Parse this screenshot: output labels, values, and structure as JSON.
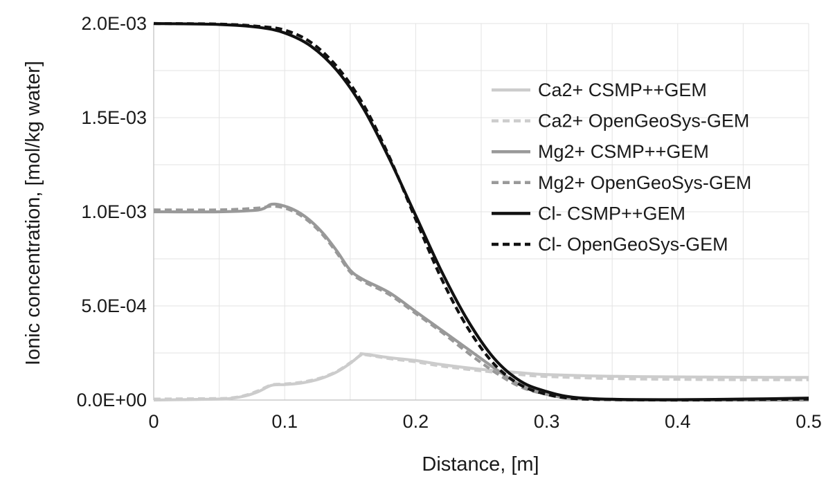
{
  "chart_data": {
    "type": "line",
    "title": "",
    "xlabel": "Distance, [m]",
    "ylabel": "Ionic concentration, [mol/kg water]",
    "xlim": [
      0,
      0.5
    ],
    "ylim": [
      0,
      0.002
    ],
    "x_ticks": [
      0,
      0.1,
      0.2,
      0.3,
      0.4,
      0.5
    ],
    "x_tick_labels": [
      "0",
      "0.1",
      "0.2",
      "0.3",
      "0.4",
      "0.5"
    ],
    "y_ticks": [
      0,
      0.0005,
      0.001,
      0.0015,
      0.002
    ],
    "y_tick_labels": [
      "0.0E+00",
      "5.0E-04",
      "1.0E-03",
      "1.5E-03",
      "2.0E-03"
    ],
    "grid": true,
    "legend_position": "right",
    "series": [
      {
        "name": "Ca2+ CSMP++GEM",
        "color": "#cccccc",
        "dash": "solid",
        "x": [
          0,
          0.05,
          0.06,
          0.07,
          0.08,
          0.09,
          0.1,
          0.11,
          0.12,
          0.13,
          0.14,
          0.15,
          0.158,
          0.16,
          0.18,
          0.2,
          0.22,
          0.25,
          0.28,
          0.3,
          0.35,
          0.4,
          0.45,
          0.5
        ],
        "y": [
          0.0,
          5e-06,
          1e-05,
          2.2e-05,
          4.5e-05,
          7.8e-05,
          8.2e-05,
          8.8e-05,
          0.0001,
          0.00012,
          0.00015,
          0.000195,
          0.00024,
          0.000245,
          0.000225,
          0.00021,
          0.000188,
          0.000163,
          0.000145,
          0.000135,
          0.000126,
          0.000123,
          0.000121,
          0.00012
        ]
      },
      {
        "name": "Ca2+ OpenGeoSys-GEM",
        "color": "#cccccc",
        "dash": "dashed",
        "x": [
          0,
          0.05,
          0.06,
          0.07,
          0.08,
          0.09,
          0.1,
          0.11,
          0.12,
          0.13,
          0.14,
          0.15,
          0.158,
          0.16,
          0.18,
          0.2,
          0.22,
          0.25,
          0.28,
          0.3,
          0.35,
          0.4,
          0.45,
          0.5
        ],
        "y": [
          5e-06,
          8e-06,
          1.2e-05,
          2.5e-05,
          5e-05,
          8e-05,
          8.5e-05,
          9.2e-05,
          0.000104,
          0.000123,
          0.000153,
          0.000198,
          0.000238,
          0.000242,
          0.00022,
          0.000203,
          0.00018,
          0.000155,
          0.000135,
          0.000125,
          0.000114,
          0.00011,
          0.000108,
          0.000108
        ]
      },
      {
        "name": "Mg2+ CSMP++GEM",
        "color": "#999999",
        "dash": "solid",
        "x": [
          0,
          0.05,
          0.08,
          0.09,
          0.1,
          0.11,
          0.12,
          0.13,
          0.14,
          0.15,
          0.16,
          0.18,
          0.2,
          0.22,
          0.24,
          0.26,
          0.28,
          0.3,
          0.32,
          0.35,
          0.4,
          0.5
        ],
        "y": [
          0.001,
          0.001,
          0.00101,
          0.00104,
          0.00103,
          0.001,
          0.00095,
          0.00088,
          0.00079,
          0.00069,
          0.00064,
          0.00057,
          0.00047,
          0.00037,
          0.00027,
          0.00017,
          8e-05,
          3.5e-05,
          1e-05,
          2e-06,
          0.0,
          0.0
        ]
      },
      {
        "name": "Mg2+ OpenGeoSys-GEM",
        "color": "#999999",
        "dash": "dashed",
        "x": [
          0,
          0.05,
          0.08,
          0.09,
          0.1,
          0.11,
          0.12,
          0.13,
          0.14,
          0.15,
          0.16,
          0.18,
          0.2,
          0.22,
          0.24,
          0.26,
          0.28,
          0.3,
          0.32,
          0.35,
          0.4,
          0.5
        ],
        "y": [
          0.00101,
          0.00101,
          0.00102,
          0.00103,
          0.00102,
          0.00099,
          0.00094,
          0.00087,
          0.00078,
          0.00068,
          0.00063,
          0.00056,
          0.00046,
          0.00036,
          0.00025,
          0.00015,
          7e-05,
          3e-05,
          8e-06,
          2e-06,
          0.0,
          0.0
        ]
      },
      {
        "name": "Cl- CSMP++GEM",
        "color": "#111111",
        "dash": "solid",
        "x": [
          0,
          0.05,
          0.08,
          0.1,
          0.12,
          0.14,
          0.16,
          0.18,
          0.2,
          0.22,
          0.24,
          0.26,
          0.28,
          0.3,
          0.32,
          0.35,
          0.4,
          0.45,
          0.5
        ],
        "y": [
          0.002,
          0.001995,
          0.00198,
          0.00195,
          0.00188,
          0.00175,
          0.00155,
          0.00128,
          0.00098,
          0.00068,
          0.00042,
          0.00022,
          0.0001,
          4.5e-05,
          1.5e-05,
          4e-06,
          2e-06,
          5e-06,
          1e-05
        ]
      },
      {
        "name": "Cl- OpenGeoSys-GEM",
        "color": "#111111",
        "dash": "dashed",
        "x": [
          0,
          0.05,
          0.08,
          0.1,
          0.12,
          0.14,
          0.16,
          0.18,
          0.2,
          0.22,
          0.24,
          0.26,
          0.28,
          0.3,
          0.32,
          0.35,
          0.4,
          0.45,
          0.5
        ],
        "y": [
          0.002,
          0.001997,
          0.001985,
          0.001965,
          0.0019,
          0.00177,
          0.00157,
          0.00129,
          0.00096,
          0.00064,
          0.00038,
          0.00019,
          8e-05,
          3e-05,
          8e-06,
          2e-06,
          0.0,
          2e-06,
          5e-06
        ]
      }
    ]
  }
}
